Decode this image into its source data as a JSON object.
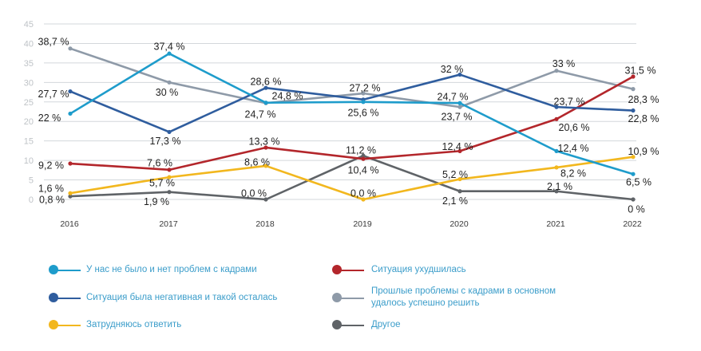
{
  "chart_data": {
    "type": "line",
    "title": "",
    "xlabel": "",
    "ylabel": "",
    "ylim": [
      0,
      45
    ],
    "yticks": [
      0,
      5,
      10,
      15,
      20,
      25,
      30,
      35,
      40,
      45
    ],
    "ytick_labels": [
      "0",
      "5",
      "10",
      "15",
      "20",
      "25",
      "30",
      "35",
      "40",
      "45"
    ],
    "grid": true,
    "legend_position": "bottom",
    "categories": [
      "2016",
      "2017",
      "2018",
      "2019",
      "2020",
      "2021",
      "2022"
    ],
    "series": [
      {
        "name": "У нас не было и нет проблем с кадрами",
        "color": "#1e9ccb",
        "values": [
          22,
          37.4,
          24.8,
          25.0,
          24.7,
          12.4,
          6.5
        ],
        "labels": [
          "22 %",
          "37,4 %",
          "24,8 %",
          null,
          "24,7 %",
          "12,4 %",
          "6,5 %"
        ]
      },
      {
        "name": "Ситуация была негативная и такой осталась",
        "color": "#2f5d9e",
        "values": [
          27.7,
          17.3,
          28.6,
          25.6,
          32,
          23.7,
          22.8
        ],
        "labels": [
          "27,7 %",
          "17,3 %",
          "28,6 %",
          "25,6 %",
          "32 %",
          "23,7 %",
          "22,8 %"
        ]
      },
      {
        "name": "Затрудняюсь ответить",
        "color": "#f2b71e",
        "values": [
          1.6,
          5.7,
          8.6,
          0.0,
          5.2,
          8.2,
          10.9
        ],
        "labels": [
          "1,6 %",
          "5,7 %",
          "8,6 %",
          "0,0 %",
          "5,2 %",
          "8,2 %",
          "10,9 %"
        ]
      },
      {
        "name": "Ситуация ухудшилась",
        "color": "#b3262b",
        "values": [
          9.2,
          7.6,
          13.3,
          10.4,
          12.4,
          20.6,
          31.5
        ],
        "labels": [
          "9,2 %",
          "7,6 %",
          "13,3 %",
          "10,4 %",
          "12,4 %",
          "20,6 %",
          "31,5 %"
        ]
      },
      {
        "name": "Прошлые проблемы с кадрами в основном удалось успешно решить",
        "name_lines": [
          "Прошлые проблемы с кадрами в основном",
          "удалось успешно решить"
        ],
        "color": "#8e9aa8",
        "values": [
          38.7,
          30,
          24.7,
          27.2,
          23.7,
          33,
          28.3
        ],
        "labels": [
          "38,7 %",
          "30 %",
          "24,7 %",
          "27,2 %",
          "23,7 %",
          "33 %",
          "28,3 %"
        ]
      },
      {
        "name": "Другое",
        "color": "#5f6367",
        "values": [
          0.8,
          1.9,
          0.0,
          11.2,
          2.1,
          2.1,
          0
        ],
        "labels": [
          "0,8 %",
          "1,9 %",
          "0,0 %",
          "11,2 %",
          "2,1 %",
          "2,1 %",
          "0 %"
        ]
      }
    ]
  }
}
